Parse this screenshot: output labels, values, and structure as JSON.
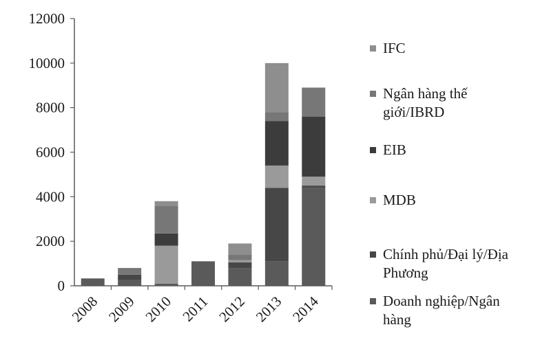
{
  "chart_data": {
    "type": "bar",
    "stacked": true,
    "title": "",
    "xlabel": "",
    "ylabel": "",
    "ylim": [
      0,
      12000
    ],
    "yticks": [
      0,
      2000,
      4000,
      6000,
      8000,
      10000,
      12000
    ],
    "grid": false,
    "legend_position": "right",
    "categories": [
      "2008",
      "2009",
      "2010",
      "2011",
      "2012",
      "2013",
      "2014"
    ],
    "series": [
      {
        "name": "Doanh nghiệp/Ngân hàng",
        "color": "#5a5a5a",
        "values": [
          330,
          250,
          100,
          1100,
          800,
          1100,
          4400
        ]
      },
      {
        "name": "Chính phủ/Đại lý/Địa Phương",
        "color": "#474747",
        "values": [
          0,
          250,
          0,
          0,
          250,
          3300,
          100
        ]
      },
      {
        "name": "MDB",
        "color": "#9a9a9a",
        "values": [
          0,
          0,
          1700,
          0,
          100,
          1000,
          400
        ]
      },
      {
        "name": "EIB",
        "color": "#3c3c3c",
        "values": [
          0,
          0,
          550,
          0,
          0,
          2000,
          2700
        ]
      },
      {
        "name": "Ngân hàng thế giới/IBRD",
        "color": "#777777",
        "values": [
          0,
          300,
          1250,
          0,
          250,
          400,
          1300
        ]
      },
      {
        "name": "IFC",
        "color": "#8e8e8e",
        "values": [
          0,
          0,
          200,
          0,
          500,
          2200,
          0
        ]
      }
    ]
  },
  "legend": {
    "items": [
      {
        "lines": [
          "IFC"
        ],
        "color": "#8e8e8e"
      },
      {
        "lines": [
          "Ngân hàng thế",
          "giới/IBRD"
        ],
        "color": "#777777"
      },
      {
        "lines": [
          "EIB"
        ],
        "color": "#3c3c3c"
      },
      {
        "lines": [
          "MDB"
        ],
        "color": "#9a9a9a"
      },
      {
        "lines": [
          "Chính phủ/Đại lý/Địa",
          "Phương"
        ],
        "color": "#474747"
      },
      {
        "lines": [
          "Doanh nghiệp/Ngân",
          "hàng"
        ],
        "color": "#5a5a5a"
      }
    ]
  }
}
